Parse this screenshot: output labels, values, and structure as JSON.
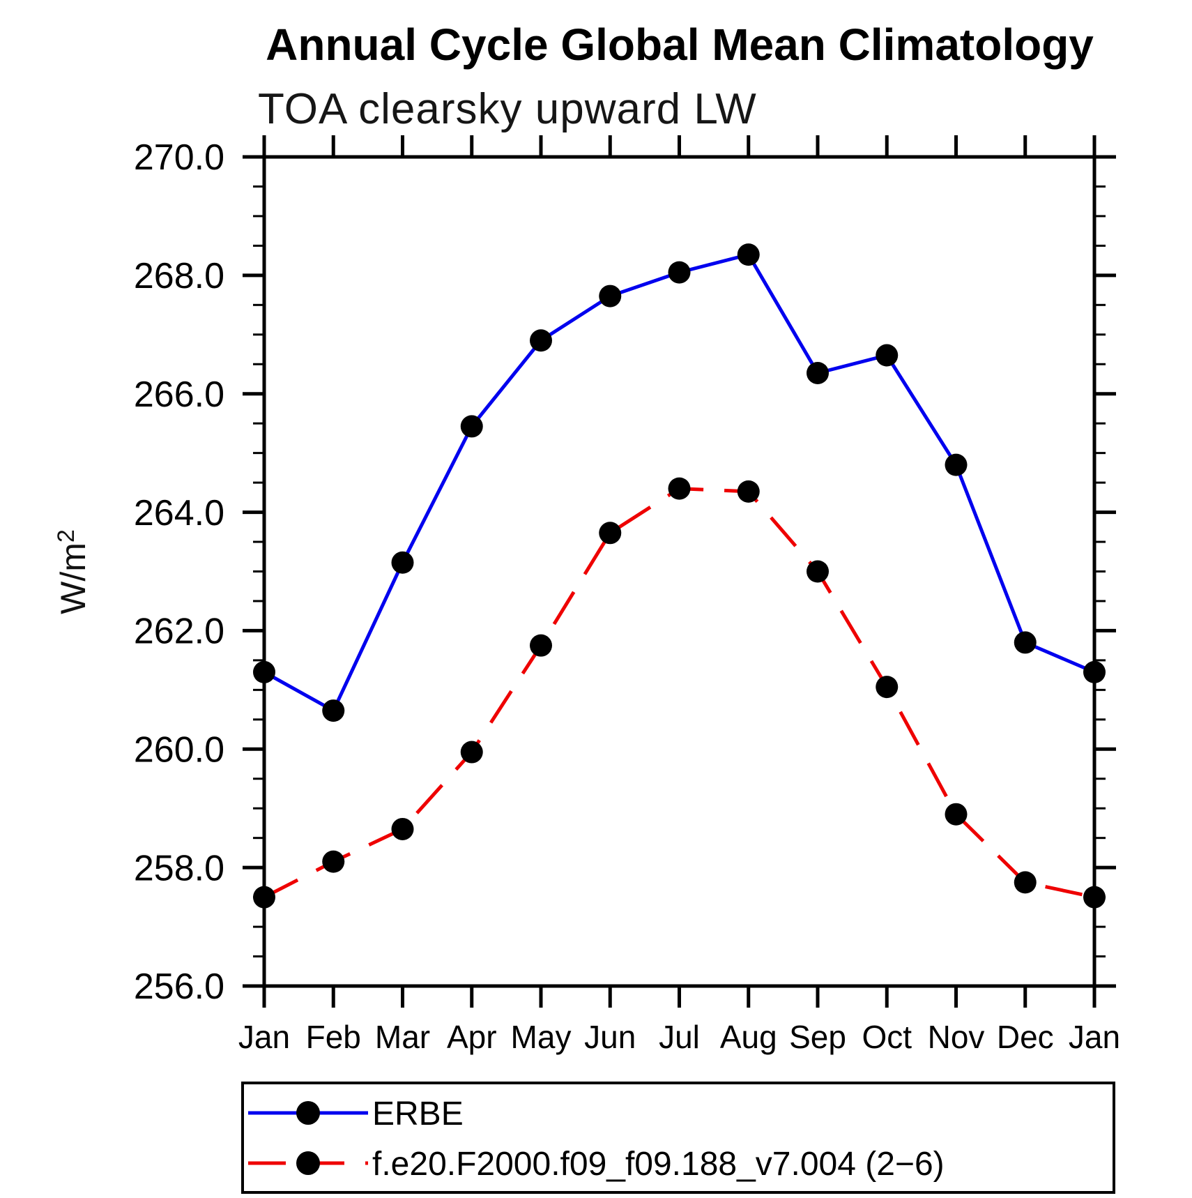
{
  "chart_data": {
    "type": "line",
    "title": "Annual Cycle Global Mean Climatology",
    "subtitle": "TOA clearsky upward LW",
    "ylabel": "W/m²",
    "ylabel_base": "W/m",
    "ylabel_exp": "2",
    "categories": [
      "Jan",
      "Feb",
      "Mar",
      "Apr",
      "May",
      "Jun",
      "Jul",
      "Aug",
      "Sep",
      "Oct",
      "Nov",
      "Dec",
      "Jan"
    ],
    "ylim": [
      256.0,
      270.0
    ],
    "ytick_values": [
      270.0,
      268.0,
      266.0,
      264.0,
      262.0,
      260.0,
      258.0,
      256.0
    ],
    "ytick_labels": [
      "270.0",
      "268.0",
      "266.0",
      "264.0",
      "262.0",
      "260.0",
      "258.0",
      "256.0"
    ],
    "yminor_step": 0.5,
    "grid": "off",
    "legend_position": "below",
    "marker_color": "#000000",
    "series": [
      {
        "name": "ERBE",
        "color": "#0000ee",
        "line_style": "solid",
        "values": [
          261.3,
          260.65,
          263.15,
          265.45,
          266.9,
          267.65,
          268.05,
          268.35,
          266.35,
          266.65,
          264.8,
          261.8,
          261.3
        ]
      },
      {
        "name": "f.e20.F2000.f09_f09.188_v7.004 (2−6)",
        "color": "#ee0000",
        "line_style": "dashed",
        "values": [
          257.5,
          258.1,
          258.65,
          259.95,
          261.75,
          263.65,
          264.4,
          264.35,
          263.0,
          261.05,
          258.9,
          257.75,
          257.5
        ]
      }
    ]
  }
}
